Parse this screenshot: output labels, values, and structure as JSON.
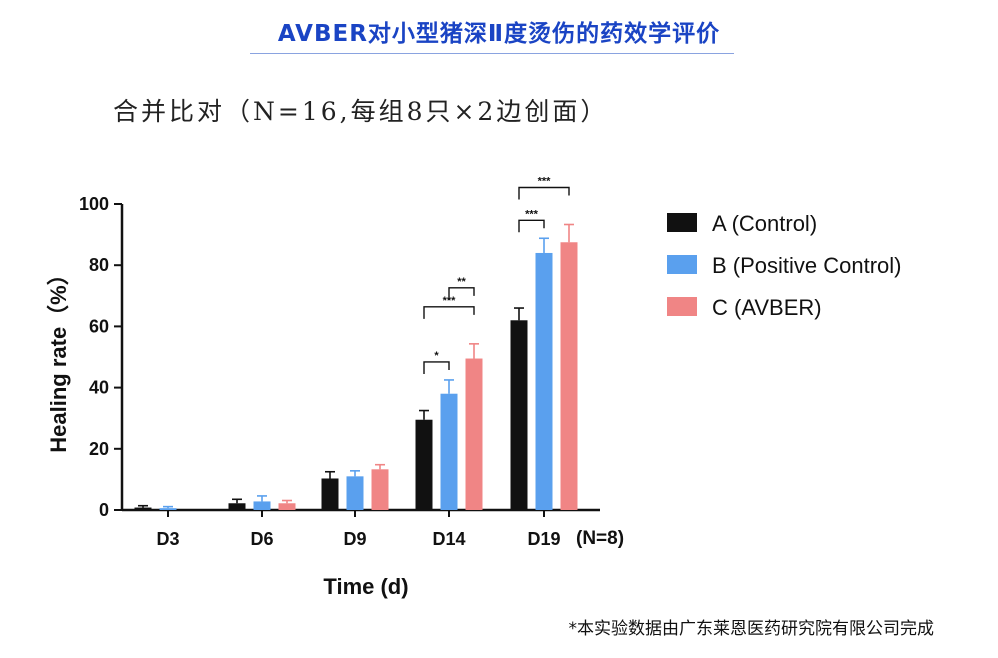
{
  "header": {
    "title": "AVBER对小型猪深Ⅱ度烫伤的药效学评价"
  },
  "subtitle": "合并比对（N=16,每组8只×2边创面）",
  "footnote": "*本实验数据由广东莱恩医药研究院有限公司完成",
  "chart_data": {
    "type": "bar",
    "categories": [
      "D3",
      "D6",
      "D9",
      "D14",
      "D19"
    ],
    "n_label": "(N=8)",
    "xlabel": "Time (d)",
    "ylabel": "Healing rate（%）",
    "ylim": [
      0,
      100
    ],
    "yticks": [
      0,
      20,
      40,
      60,
      80,
      100
    ],
    "legend_position": "right",
    "series": [
      {
        "name": "A (Control)",
        "color": "#111111",
        "values": [
          0.8,
          2.2,
          10.3,
          29.5,
          62.0
        ],
        "errors": [
          0.6,
          1.3,
          2.2,
          3.0,
          4.0
        ]
      },
      {
        "name": "B (Positive Control)",
        "color": "#5aa0ee",
        "values": [
          0.6,
          2.8,
          11.0,
          38.0,
          84.0
        ],
        "errors": [
          0.5,
          1.8,
          1.8,
          4.5,
          4.8
        ]
      },
      {
        "name": "C (AVBER)",
        "color": "#f08585",
        "values": [
          0.0,
          2.2,
          13.3,
          49.5,
          87.5
        ],
        "errors": [
          0.0,
          0.9,
          1.5,
          4.8,
          5.8
        ]
      }
    ],
    "significance": [
      {
        "category": "D14",
        "from": "A (Control)",
        "to": "B (Positive Control)",
        "label": "*"
      },
      {
        "category": "D14",
        "from": "A (Control)",
        "to": "C (AVBER)",
        "label": "***"
      },
      {
        "category": "D14",
        "from": "B (Positive Control)",
        "to": "C (AVBER)",
        "label": "**"
      },
      {
        "category": "D19",
        "from": "A (Control)",
        "to": "B (Positive Control)",
        "label": "***"
      },
      {
        "category": "D19",
        "from": "A (Control)",
        "to": "C (AVBER)",
        "label": "***"
      }
    ]
  }
}
